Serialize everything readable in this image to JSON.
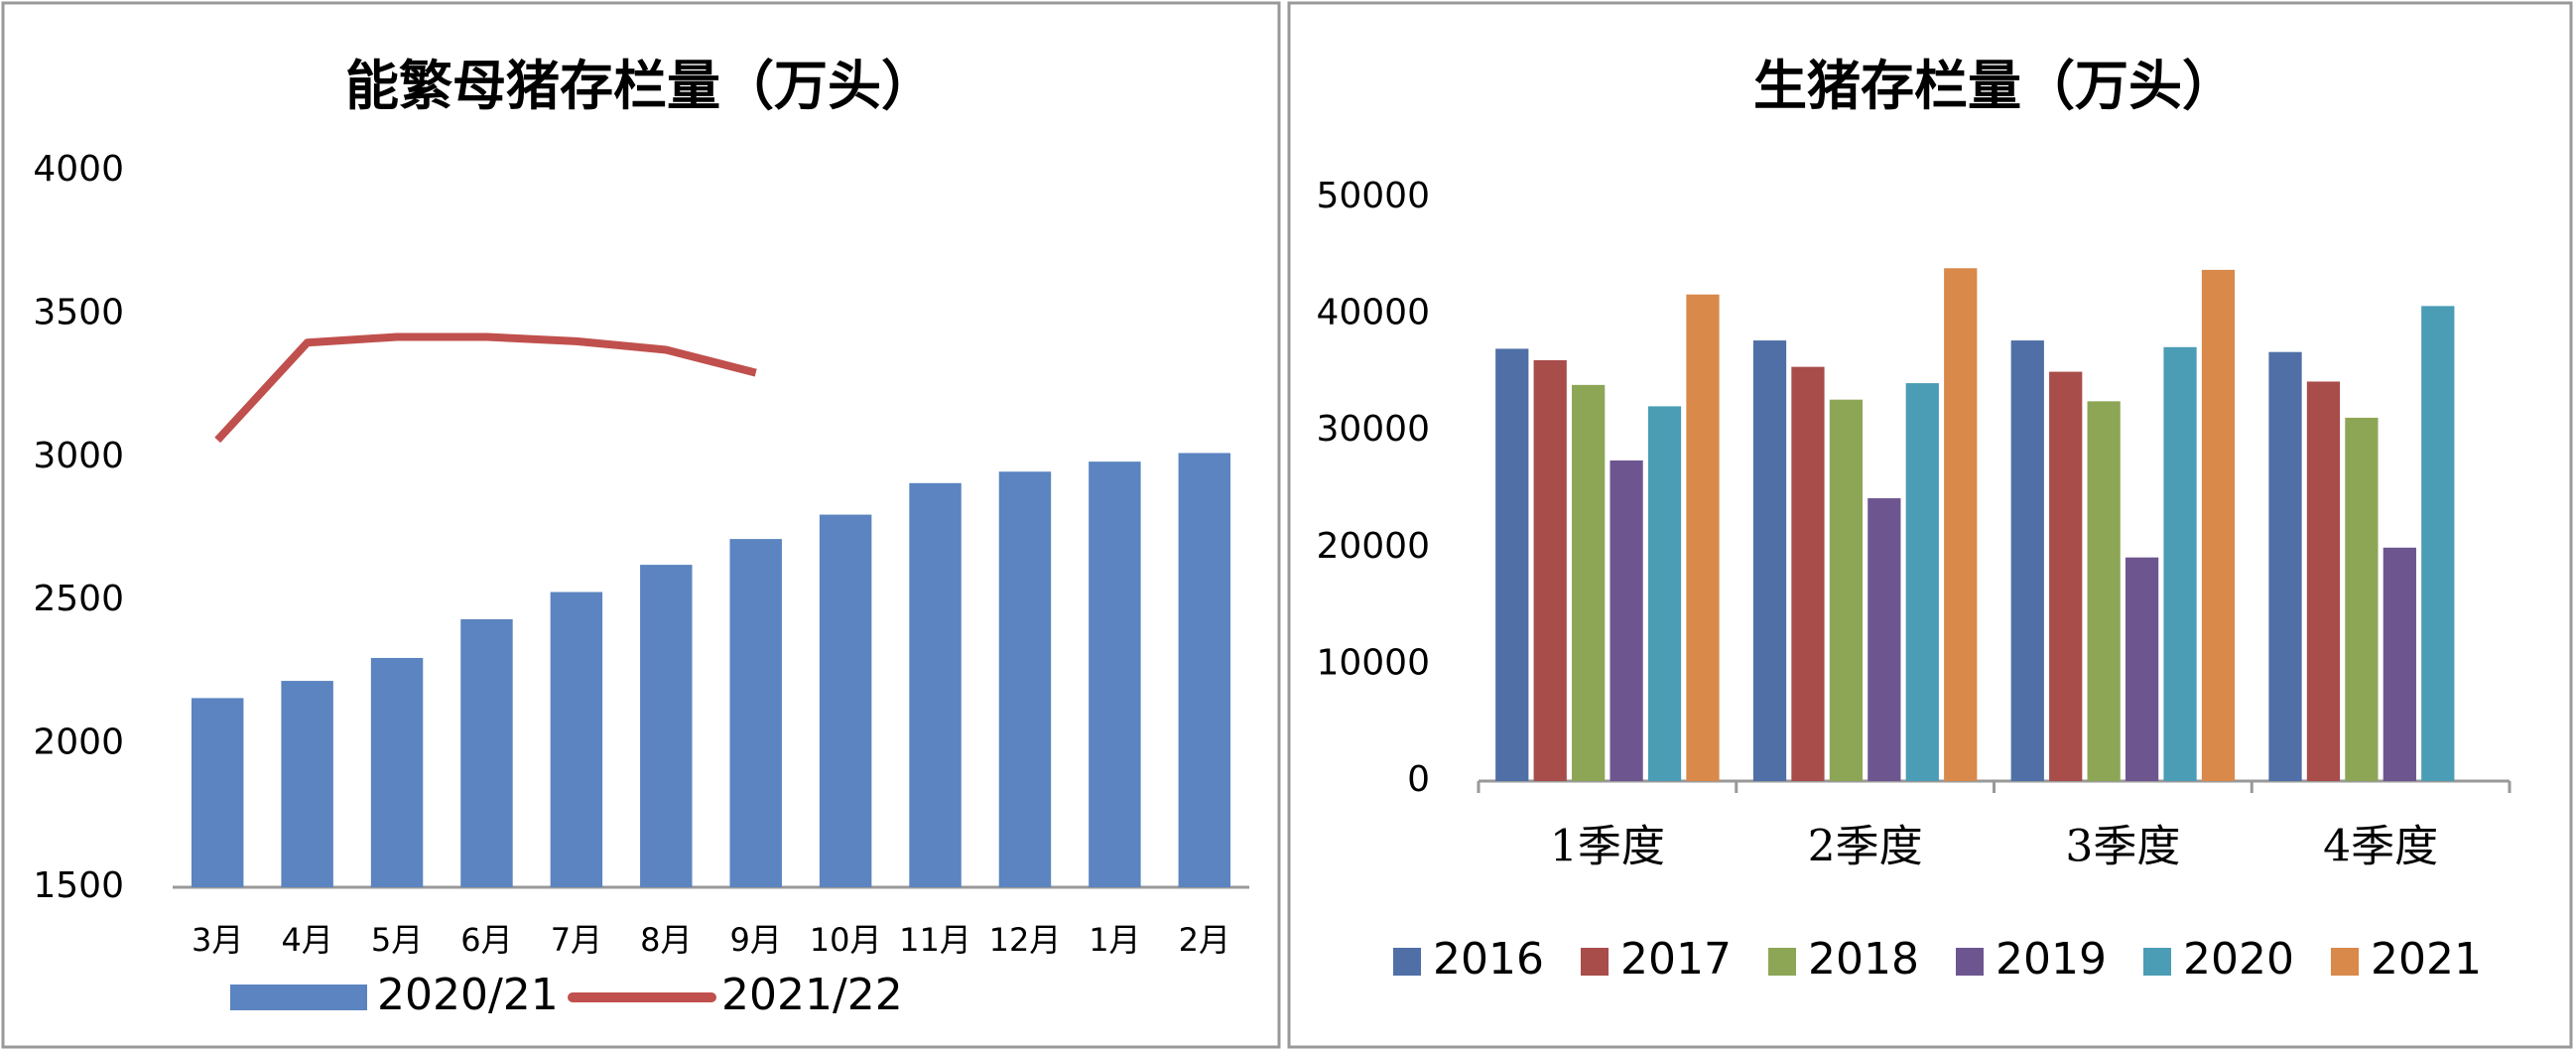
{
  "chart_data": [
    {
      "type": "combo",
      "title": "能繁母猪存栏量（万头）",
      "categories": [
        "3月",
        "4月",
        "5月",
        "6月",
        "7月",
        "8月",
        "9月",
        "10月",
        "11月",
        "12月",
        "1月",
        "2月"
      ],
      "series": [
        {
          "name": "2020/21",
          "type": "bar",
          "color": "#5b84c0",
          "values": [
            2160,
            2220,
            2300,
            2435,
            2530,
            2625,
            2715,
            2800,
            2910,
            2950,
            2985,
            3015
          ]
        },
        {
          "name": "2021/22",
          "type": "line",
          "color": "#c0504d",
          "values": [
            3060,
            3400,
            3420,
            3420,
            3405,
            3375,
            3295,
            null,
            null,
            null,
            null,
            null
          ]
        }
      ],
      "ylim": [
        1500,
        4000
      ],
      "yticks": [
        1500,
        2000,
        2500,
        3000,
        3500,
        4000
      ],
      "grid": false,
      "legend": "bottom"
    },
    {
      "type": "bar",
      "title": "生猪存栏量（万头）",
      "categories": [
        "1季度",
        "2季度",
        "3季度",
        "4季度"
      ],
      "series": [
        {
          "name": "2016",
          "color": "#4f6fa6",
          "values": [
            37040,
            37750,
            37750,
            36760
          ]
        },
        {
          "name": "2017",
          "color": "#a84d4a",
          "values": [
            36060,
            35490,
            35070,
            34230
          ]
        },
        {
          "name": "2018",
          "color": "#8da656",
          "values": [
            33940,
            32680,
            32540,
            31130
          ]
        },
        {
          "name": "2019",
          "color": "#6d5690",
          "values": [
            27470,
            24230,
            19160,
            20000
          ]
        },
        {
          "name": "2020",
          "color": "#4a9db5",
          "values": [
            32110,
            34090,
            37180,
            40700
          ]
        },
        {
          "name": "2021",
          "color": "#d9894a",
          "values": [
            41690,
            43940,
            43800,
            null
          ]
        }
      ],
      "ylim": [
        0,
        50000
      ],
      "yticks": [
        0,
        10000,
        20000,
        30000,
        40000,
        50000
      ],
      "grid": false,
      "legend": "bottom"
    }
  ]
}
